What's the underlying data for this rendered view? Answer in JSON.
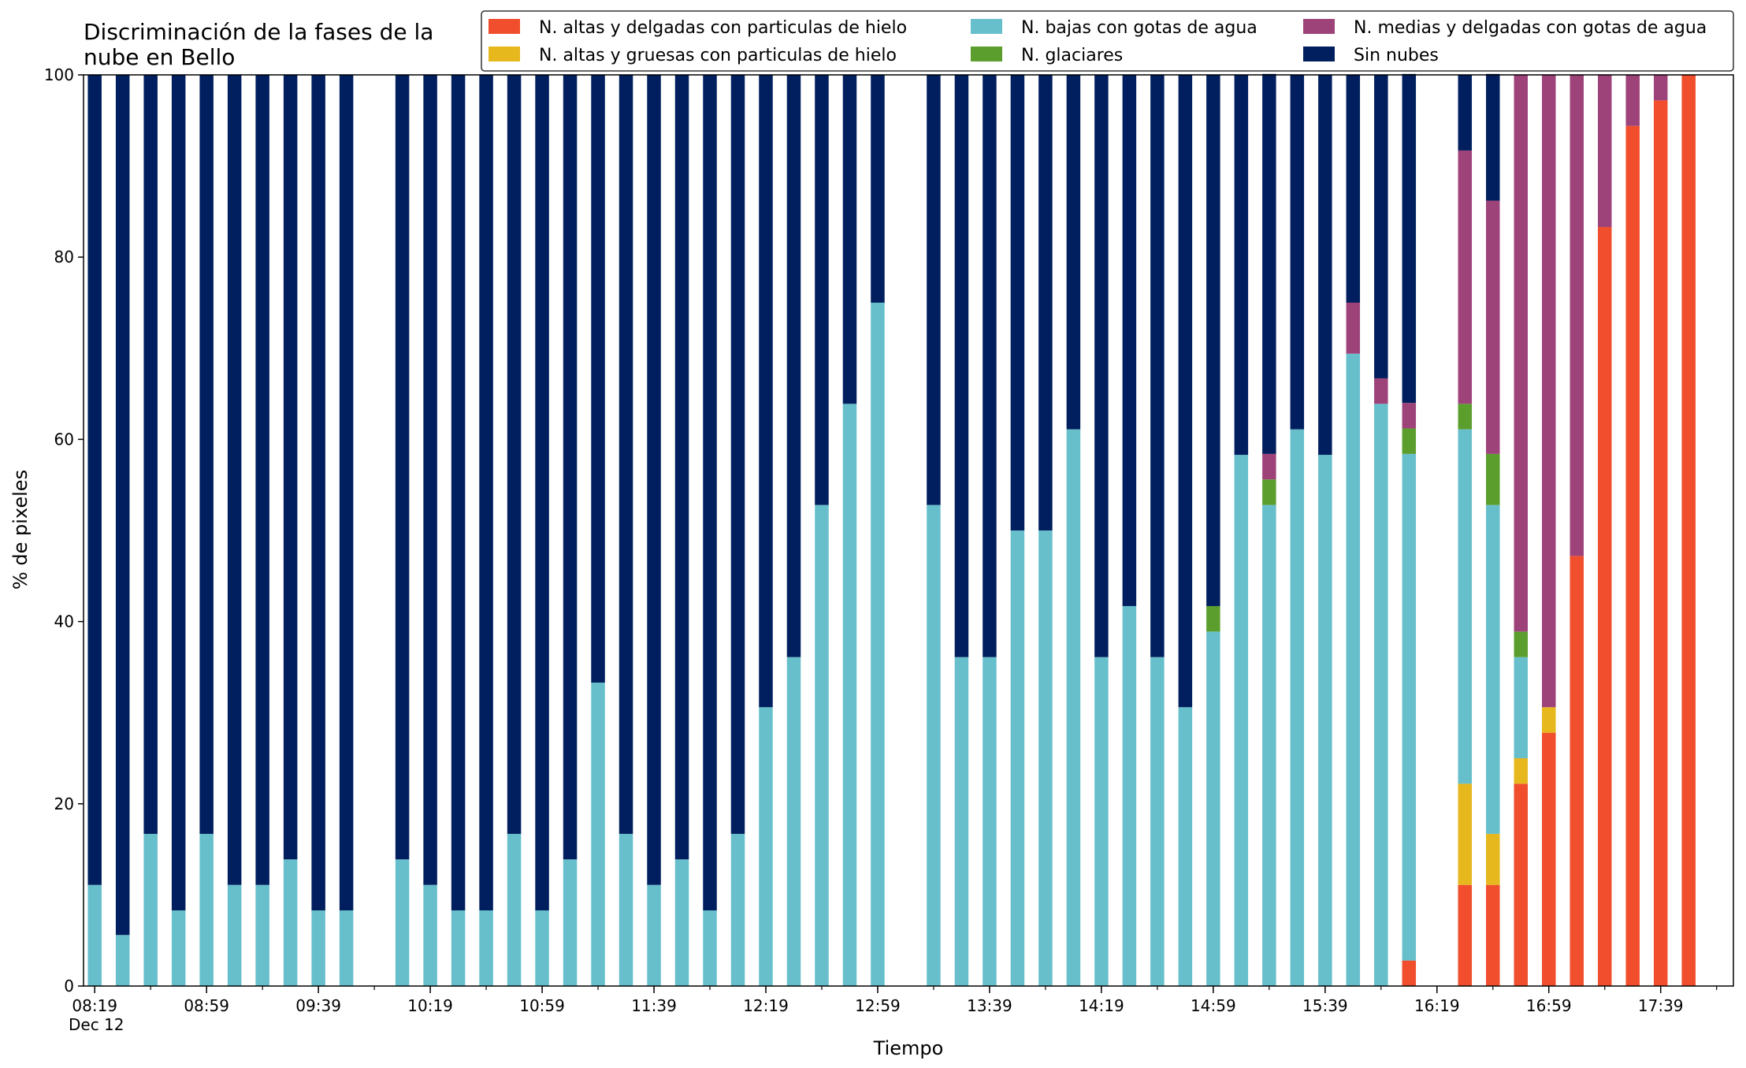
{
  "chart_data": {
    "type": "bar",
    "stacked": true,
    "title_line1": "Discriminación de la fases de la",
    "title_line2": "nube en Bello",
    "xlabel": "Tiempo",
    "ylabel": "% de pixeles",
    "ylim": [
      0,
      100
    ],
    "yticks": [
      0,
      20,
      40,
      60,
      80,
      100
    ],
    "x_tick_labels": [
      "08:19",
      "08:59",
      "09:39",
      "10:19",
      "10:59",
      "11:39",
      "12:19",
      "12:59",
      "13:39",
      "14:19",
      "14:59",
      "15:39",
      "16:19",
      "16:59",
      "17:39"
    ],
    "x_sub_label": "Dec 12",
    "x_start": "08:19",
    "x_end": "18:01",
    "grid": false,
    "legend_position": "top-right",
    "colors": [
      "#f04e2c",
      "#e6b81e",
      "#67bfcb",
      "#5c9e2e",
      "#9e437a",
      "#011f5e"
    ],
    "series": [
      {
        "name": "N. altas y delgadas con particulas de hielo",
        "color": "#f04e2c"
      },
      {
        "name": "N. altas y gruesas con particulas de hielo",
        "color": "#e6b81e"
      },
      {
        "name": "N. bajas con gotas de agua",
        "color": "#67bfcb"
      },
      {
        "name": "N. glaciares",
        "color": "#5c9e2e"
      },
      {
        "name": "N. medias y delgadas con gotas de agua",
        "color": "#9e437a"
      },
      {
        "name": "Sin nubes",
        "color": "#011f5e"
      }
    ],
    "bars": [
      {
        "time": "08:19",
        "values": [
          0,
          0,
          11.1,
          0,
          0,
          88.9
        ]
      },
      {
        "time": "08:29",
        "values": [
          0,
          0,
          5.6,
          0,
          0,
          94.4
        ]
      },
      {
        "time": "08:39",
        "values": [
          0,
          0,
          16.7,
          0,
          0,
          83.3
        ]
      },
      {
        "time": "08:49",
        "values": [
          0,
          0,
          8.3,
          0,
          0,
          91.7
        ]
      },
      {
        "time": "08:59",
        "values": [
          0,
          0,
          16.7,
          0,
          0,
          83.3
        ]
      },
      {
        "time": "09:09",
        "values": [
          0,
          0,
          11.1,
          0,
          0,
          88.9
        ]
      },
      {
        "time": "09:19",
        "values": [
          0,
          0,
          11.1,
          0,
          0,
          88.9
        ]
      },
      {
        "time": "09:29",
        "values": [
          0,
          0,
          13.9,
          0,
          0,
          86.1
        ]
      },
      {
        "time": "09:39",
        "values": [
          0,
          0,
          8.3,
          0,
          0,
          91.7
        ]
      },
      {
        "time": "09:49",
        "values": [
          0,
          0,
          8.3,
          0,
          0,
          91.7
        ]
      },
      {
        "time": "10:09",
        "values": [
          0,
          0,
          13.9,
          0,
          0,
          86.1
        ]
      },
      {
        "time": "10:19",
        "values": [
          0,
          0,
          11.1,
          0,
          0,
          88.9
        ]
      },
      {
        "time": "10:29",
        "values": [
          0,
          0,
          8.3,
          0,
          0,
          91.7
        ]
      },
      {
        "time": "10:39",
        "values": [
          0,
          0,
          8.3,
          0,
          0,
          91.7
        ]
      },
      {
        "time": "10:49",
        "values": [
          0,
          0,
          16.7,
          0,
          0,
          83.3
        ]
      },
      {
        "time": "10:59",
        "values": [
          0,
          0,
          8.3,
          0,
          0,
          91.7
        ]
      },
      {
        "time": "11:09",
        "values": [
          0,
          0,
          13.9,
          0,
          0,
          86.1
        ]
      },
      {
        "time": "11:19",
        "values": [
          0,
          0,
          33.3,
          0,
          0,
          66.7
        ]
      },
      {
        "time": "11:29",
        "values": [
          0,
          0,
          16.7,
          0,
          0,
          83.3
        ]
      },
      {
        "time": "11:39",
        "values": [
          0,
          0,
          11.1,
          0,
          0,
          88.9
        ]
      },
      {
        "time": "11:49",
        "values": [
          0,
          0,
          13.9,
          0,
          0,
          86.1
        ]
      },
      {
        "time": "11:59",
        "values": [
          0,
          0,
          8.3,
          0,
          0,
          91.7
        ]
      },
      {
        "time": "12:09",
        "values": [
          0,
          0,
          16.7,
          0,
          0,
          83.3
        ]
      },
      {
        "time": "12:19",
        "values": [
          0,
          0,
          30.6,
          0,
          0,
          69.4
        ]
      },
      {
        "time": "12:29",
        "values": [
          0,
          0,
          36.1,
          0,
          0,
          63.9
        ]
      },
      {
        "time": "12:39",
        "values": [
          0,
          0,
          52.8,
          0,
          0,
          47.2
        ]
      },
      {
        "time": "12:49",
        "values": [
          0,
          0,
          63.9,
          0,
          0,
          36.1
        ]
      },
      {
        "time": "12:59",
        "values": [
          0,
          0,
          75.0,
          0,
          0,
          25.0
        ]
      },
      {
        "time": "13:19",
        "values": [
          0,
          0,
          52.8,
          0,
          0,
          47.2
        ]
      },
      {
        "time": "13:29",
        "values": [
          0,
          0,
          36.1,
          0,
          0,
          63.9
        ]
      },
      {
        "time": "13:39",
        "values": [
          0,
          0,
          36.1,
          0,
          0,
          63.9
        ]
      },
      {
        "time": "13:49",
        "values": [
          0,
          0,
          50.0,
          0,
          0,
          50.0
        ]
      },
      {
        "time": "13:59",
        "values": [
          0,
          0,
          50.0,
          0,
          0,
          50.0
        ]
      },
      {
        "time": "14:09",
        "values": [
          0,
          0,
          61.1,
          0,
          0,
          38.9
        ]
      },
      {
        "time": "14:19",
        "values": [
          0,
          0,
          36.1,
          0,
          0,
          63.9
        ]
      },
      {
        "time": "14:29",
        "values": [
          0,
          0,
          41.7,
          0,
          0,
          58.3
        ]
      },
      {
        "time": "14:39",
        "values": [
          0,
          0,
          36.1,
          0,
          0,
          63.9
        ]
      },
      {
        "time": "14:49",
        "values": [
          0,
          0,
          30.6,
          0,
          0,
          69.4
        ]
      },
      {
        "time": "14:59",
        "values": [
          0,
          0,
          38.9,
          2.8,
          0,
          58.3
        ]
      },
      {
        "time": "15:09",
        "values": [
          0,
          0,
          58.3,
          0,
          0,
          41.7
        ]
      },
      {
        "time": "15:19",
        "values": [
          0,
          0,
          52.8,
          2.8,
          2.8,
          41.7
        ]
      },
      {
        "time": "15:29",
        "values": [
          0,
          0,
          61.1,
          0,
          0,
          38.9
        ]
      },
      {
        "time": "15:39",
        "values": [
          0,
          0,
          58.3,
          0,
          0,
          41.7
        ]
      },
      {
        "time": "15:49",
        "values": [
          0,
          0,
          69.4,
          0,
          5.6,
          25.0
        ]
      },
      {
        "time": "15:59",
        "values": [
          0,
          0,
          63.9,
          0,
          2.8,
          33.3
        ]
      },
      {
        "time": "16:09",
        "values": [
          2.8,
          0,
          55.6,
          2.8,
          2.8,
          36.1
        ]
      },
      {
        "time": "16:29",
        "values": [
          11.1,
          11.1,
          38.9,
          2.8,
          27.8,
          8.3
        ]
      },
      {
        "time": "16:39",
        "values": [
          11.1,
          5.6,
          36.1,
          5.6,
          27.8,
          13.9
        ]
      },
      {
        "time": "16:49",
        "values": [
          22.2,
          2.8,
          11.1,
          2.8,
          61.1,
          0
        ]
      },
      {
        "time": "16:59",
        "values": [
          27.8,
          2.8,
          0,
          0,
          69.4,
          0
        ]
      },
      {
        "time": "17:09",
        "values": [
          47.2,
          0,
          0,
          0,
          52.8,
          0
        ]
      },
      {
        "time": "17:19",
        "values": [
          83.3,
          0,
          0,
          0,
          16.7,
          0
        ]
      },
      {
        "time": "17:29",
        "values": [
          94.4,
          0,
          0,
          0,
          5.6,
          0
        ]
      },
      {
        "time": "17:39",
        "values": [
          97.2,
          0,
          0,
          0,
          2.8,
          0
        ]
      },
      {
        "time": "17:49",
        "values": [
          100,
          0,
          0,
          0,
          0,
          0
        ]
      }
    ]
  }
}
